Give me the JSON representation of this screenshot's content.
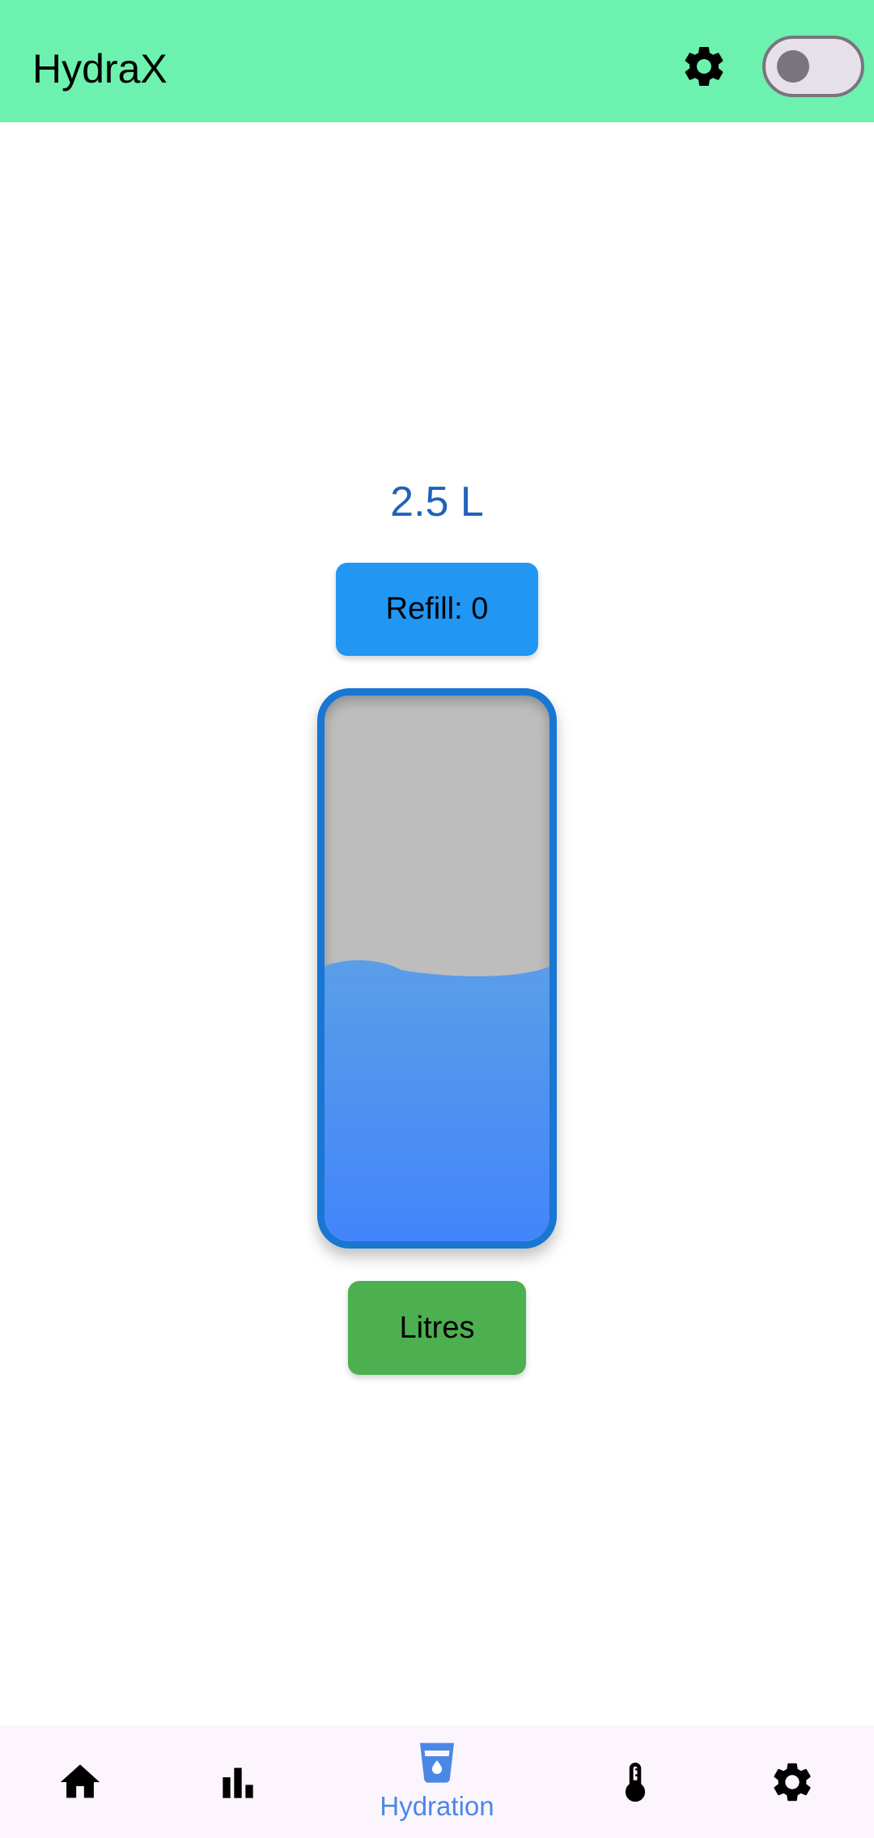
{
  "app_bar": {
    "title": "HydraX",
    "settings_icon": "gear-icon",
    "theme_toggle": {
      "on": false
    }
  },
  "main": {
    "volume_text": "2.5 L",
    "refill_label": "Refill: 0",
    "bottle": {
      "fill_fraction": 0.5
    },
    "unit_label": "Litres"
  },
  "bottom_nav": {
    "items": [
      {
        "id": "home",
        "icon": "home-icon",
        "label": ""
      },
      {
        "id": "stats",
        "icon": "bar-chart-icon",
        "label": ""
      },
      {
        "id": "hydration",
        "icon": "water-cup-icon",
        "label": "Hydration",
        "active": true
      },
      {
        "id": "temperature",
        "icon": "thermometer-icon",
        "label": ""
      },
      {
        "id": "settings",
        "icon": "gear-icon",
        "label": ""
      }
    ]
  },
  "colors": {
    "app_bar": "#6cf2ae",
    "volume_text": "#1f63b8",
    "refill_button": "#2196f3",
    "unit_button": "#4caf50",
    "bottle_border": "#1976d2",
    "bottle_empty": "#bdbdbd",
    "water_top": "#5a9ee8",
    "water_bottom": "#4285fb",
    "nav_active": "#4a88e6"
  }
}
